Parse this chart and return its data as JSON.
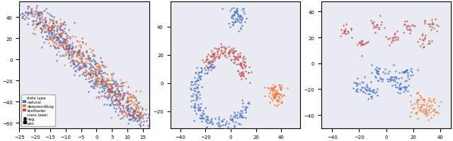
{
  "plot1": {
    "xlim": [
      -25,
      17
    ],
    "ylim": [
      -65,
      55
    ],
    "xticks": [
      -25,
      -20,
      -15,
      -10,
      -5,
      0,
      5,
      10,
      15
    ],
    "yticks": [
      -60,
      -40,
      -20,
      0,
      20,
      40
    ]
  },
  "plot2": {
    "xlim": [
      -48,
      55
    ],
    "ylim": [
      -32,
      58
    ],
    "xticks": [
      -40,
      -20,
      0,
      20,
      40
    ],
    "yticks": [
      -20,
      0,
      20,
      40
    ]
  },
  "plot3": {
    "xlim": [
      -48,
      48
    ],
    "ylim": [
      -50,
      48
    ],
    "xticks": [
      -40,
      -20,
      0,
      20,
      40
    ],
    "yticks": [
      -40,
      -20,
      0,
      20,
      40
    ]
  },
  "colors": {
    "natural": "#4472C4",
    "deepwordbug": "#ED7D31",
    "textfooler": "#C0504D"
  },
  "marker_size": 3,
  "alpha": 0.85,
  "bg_color": "#eaeaf2"
}
